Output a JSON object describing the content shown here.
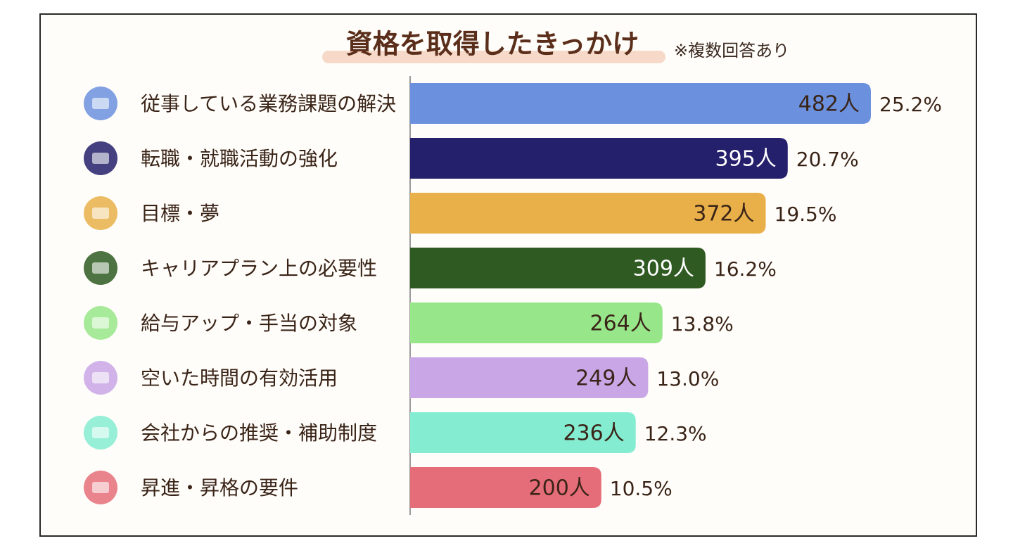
{
  "chart_data": {
    "type": "bar",
    "orientation": "horizontal",
    "title": "資格を取得したきっかけ",
    "subtitle": "※複数回答あり",
    "categories": [
      "従事している業務課題の解決",
      "転職・就職活動の強化",
      "目標・夢",
      "キャリアプラン上の必要性",
      "給与アップ・手当の対象",
      "空いた時間の有効活用",
      "会社からの推奨・補助制度",
      "昇進・昇格の要件"
    ],
    "values": [
      482,
      395,
      372,
      309,
      264,
      249,
      236,
      200
    ],
    "value_labels": [
      "482人",
      "395人",
      "372人",
      "309人",
      "264人",
      "249人",
      "236人",
      "200人"
    ],
    "shares": [
      25.2,
      20.7,
      19.5,
      16.2,
      13.8,
      13.0,
      12.3,
      10.5
    ],
    "share_labels": [
      "25.2%",
      "20.7%",
      "19.5%",
      "16.2%",
      "13.8%",
      "13.0%",
      "12.3%",
      "10.5%"
    ],
    "colors": [
      "#6b91de",
      "#25206b",
      "#e9b04a",
      "#2f5b22",
      "#98e68a",
      "#c9a6e6",
      "#84ecd0",
      "#e56d79"
    ]
  }
}
